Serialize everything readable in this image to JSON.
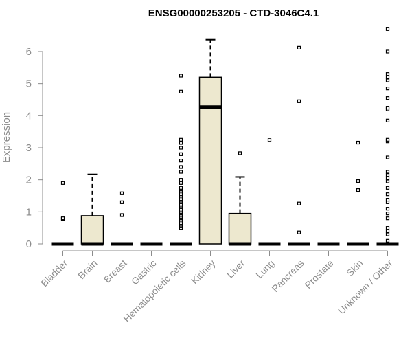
{
  "chart_data": {
    "type": "boxplot",
    "title": "ENSG00000253205 - CTD-3046C4.1",
    "ylabel": "Expression",
    "xlabel": "",
    "ylim": [
      0,
      6.8
    ],
    "yticks": [
      0,
      1,
      2,
      3,
      4,
      5,
      6
    ],
    "box_color": "#ede8cf",
    "median_color": "#000000",
    "axis_color": "#8c8c8c",
    "grid": false,
    "categories": [
      "Bladder",
      "Brain",
      "Breast",
      "Gastric",
      "Hematopoietic cells",
      "Kidney",
      "Liver",
      "Lung",
      "Pancreas",
      "Prostate",
      "Skin",
      "Unknown / Other"
    ],
    "boxes": [
      {
        "category": "Bladder",
        "q1": 0,
        "median": 0,
        "q3": 0,
        "whisker_low": 0,
        "whisker_high": 0,
        "outliers": [
          0.78,
          0.8,
          1.9
        ]
      },
      {
        "category": "Brain",
        "q1": 0,
        "median": 0,
        "q3": 0.88,
        "whisker_low": 0,
        "whisker_high": 2.17,
        "outliers": []
      },
      {
        "category": "Breast",
        "q1": 0,
        "median": 0,
        "q3": 0,
        "whisker_low": 0,
        "whisker_high": 0,
        "outliers": [
          0.9,
          1.3,
          1.58
        ]
      },
      {
        "category": "Gastric",
        "q1": 0,
        "median": 0,
        "q3": 0,
        "whisker_low": 0,
        "whisker_high": 0,
        "outliers": []
      },
      {
        "category": "Hematopoietic cells",
        "q1": 0,
        "median": 0,
        "q3": 0,
        "whisker_low": 0,
        "whisker_high": 0,
        "outliers": [
          0.5,
          0.55,
          0.6,
          0.65,
          0.7,
          0.75,
          0.8,
          0.85,
          0.9,
          0.95,
          1.0,
          1.05,
          1.1,
          1.15,
          1.2,
          1.25,
          1.3,
          1.35,
          1.4,
          1.45,
          1.5,
          1.55,
          1.6,
          1.65,
          1.7,
          1.75,
          1.9,
          2.0,
          2.25,
          2.4,
          2.6,
          2.8,
          3.0,
          3.15,
          3.25,
          4.75,
          5.25
        ]
      },
      {
        "category": "Kidney",
        "q1": 0,
        "median": 4.27,
        "q3": 5.2,
        "whisker_low": 0,
        "whisker_high": 6.37,
        "outliers": []
      },
      {
        "category": "Liver",
        "q1": 0,
        "median": 0,
        "q3": 0.95,
        "whisker_low": 0,
        "whisker_high": 2.09,
        "outliers": [
          2.83
        ]
      },
      {
        "category": "Lung",
        "q1": 0,
        "median": 0,
        "q3": 0,
        "whisker_low": 0,
        "whisker_high": 0,
        "outliers": [
          3.24
        ]
      },
      {
        "category": "Pancreas",
        "q1": 0,
        "median": 0,
        "q3": 0,
        "whisker_low": 0,
        "whisker_high": 0,
        "outliers": [
          0.36,
          1.26,
          4.45,
          6.12
        ]
      },
      {
        "category": "Prostate",
        "q1": 0,
        "median": 0,
        "q3": 0,
        "whisker_low": 0,
        "whisker_high": 0,
        "outliers": []
      },
      {
        "category": "Skin",
        "q1": 0,
        "median": 0,
        "q3": 0,
        "whisker_low": 0,
        "whisker_high": 0,
        "outliers": [
          1.68,
          1.96,
          3.16
        ]
      },
      {
        "category": "Unknown / Other",
        "q1": 0,
        "median": 0,
        "q3": 0,
        "whisker_low": 0,
        "whisker_high": 0,
        "outliers": [
          0.1,
          0.3,
          0.4,
          0.5,
          0.8,
          0.95,
          1.1,
          1.3,
          1.38,
          1.55,
          1.75,
          1.95,
          2.05,
          2.15,
          2.25,
          2.7,
          3.2,
          3.25,
          3.85,
          4.2,
          4.25,
          4.55,
          4.85,
          5.1,
          5.2,
          5.3,
          6.0,
          6.7
        ]
      }
    ]
  }
}
